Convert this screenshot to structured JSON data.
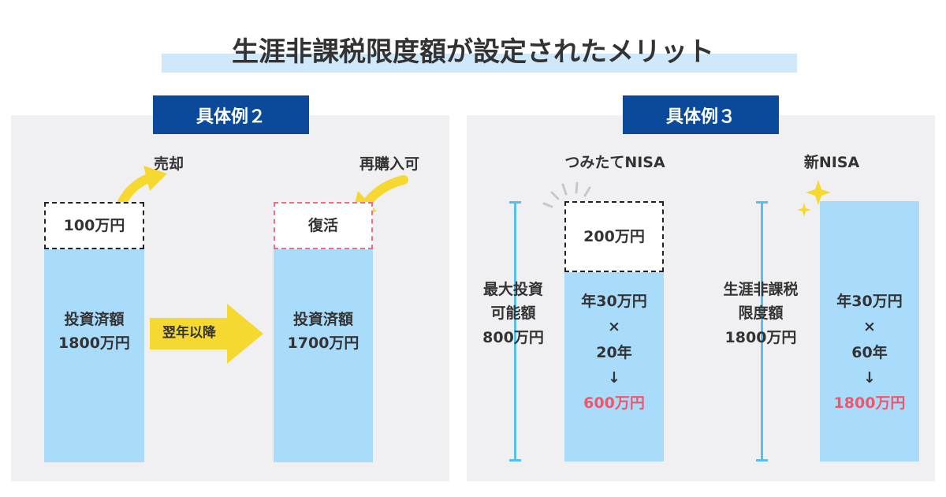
{
  "title": "生涯非課税限度額が設定されたメリット",
  "example2": {
    "badge": "具体例２",
    "sell_label": "売却",
    "repurchase_label": "再購入可",
    "sold_box": "100万円",
    "restored_box": "復活",
    "before_bar": [
      "投資済額",
      "1800万円"
    ],
    "arrow_label": "翌年以降",
    "after_bar": [
      "投資済額",
      "1700万円"
    ]
  },
  "example3": {
    "badge": "具体例３",
    "left_heading": "つみたてNISA",
    "right_heading": "新NISA",
    "left_measure": [
      "最大投資",
      "可能額",
      "800万円"
    ],
    "left_gap_box": "200万円",
    "left_bar": {
      "line1": "年30万円",
      "times": "×",
      "line2": "20年",
      "down": "↓",
      "result": "600万円"
    },
    "right_measure": [
      "生涯非課税",
      "限度額",
      "1800万円"
    ],
    "right_bar": {
      "line1": "年30万円",
      "times": "×",
      "line2": "60年",
      "down": "↓",
      "result": "1800万円"
    }
  },
  "colors": {
    "navy": "#0b4a9a",
    "bar": "#a9dcfb",
    "yellow": "#f5d930",
    "red": "#f0566b",
    "panel": "#f0f0f3"
  }
}
